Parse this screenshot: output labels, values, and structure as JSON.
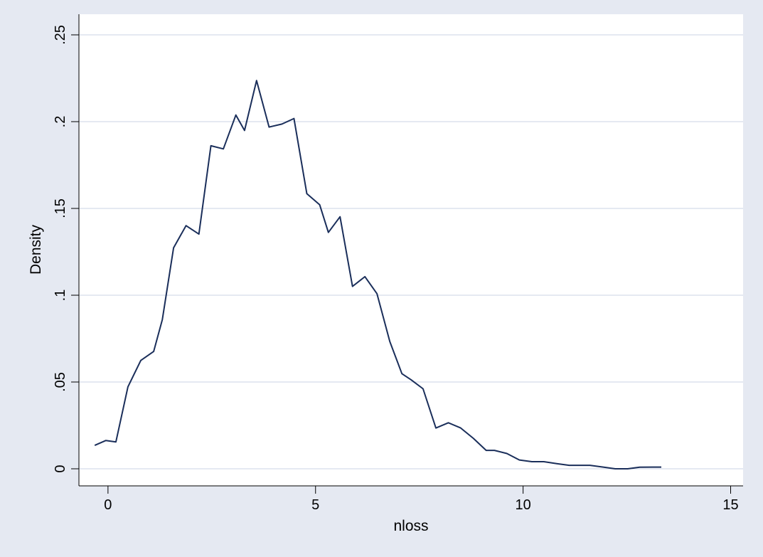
{
  "chart_data": {
    "type": "line",
    "title": "",
    "xlabel": "nloss",
    "ylabel": "Density",
    "xlim": [
      -0.7,
      15.3
    ],
    "ylim": [
      0,
      0.25
    ],
    "xticks": [
      0,
      5,
      10,
      15
    ],
    "xtick_labels": [
      "0",
      "5",
      "10",
      "15"
    ],
    "yticks": [
      0,
      0.05,
      0.1,
      0.15,
      0.2,
      0.25
    ],
    "ytick_labels": [
      "0",
      ".05",
      ".1",
      ".15",
      ".2",
      ".25"
    ],
    "grid": true,
    "legend": "none",
    "colors": {
      "background": "#e5e9f2",
      "plot_area": "#ffffff",
      "line": "#1a2e5a",
      "grid": "#e5e9f2"
    },
    "series": [
      {
        "x": [
          -0.32,
          -0.05,
          0.19,
          0.48,
          0.79,
          1.1,
          1.31,
          1.58,
          1.88,
          2.19,
          2.48,
          2.78,
          3.08,
          3.29,
          3.58,
          3.88,
          4.19,
          4.48,
          4.79,
          5.1,
          5.31,
          5.59,
          5.89,
          6.19,
          6.48,
          6.79,
          7.08,
          7.3,
          7.59,
          7.9,
          8.2,
          8.49,
          8.8,
          9.11,
          9.31,
          9.61,
          9.91,
          10.21,
          10.5,
          10.81,
          11.11,
          11.32,
          11.61,
          11.93,
          12.22,
          12.52,
          12.81,
          13.12,
          13.33
        ],
        "y": [
          0.0135,
          0.0163,
          0.0155,
          0.0472,
          0.0624,
          0.0676,
          0.086,
          0.1273,
          0.1401,
          0.1352,
          0.1861,
          0.1843,
          0.2038,
          0.1949,
          0.2237,
          0.1969,
          0.1986,
          0.2018,
          0.1585,
          0.1521,
          0.1362,
          0.1452,
          0.1051,
          0.1107,
          0.1009,
          0.0733,
          0.0548,
          0.0513,
          0.0461,
          0.0235,
          0.0265,
          0.0236,
          0.0176,
          0.0106,
          0.0106,
          0.0088,
          0.0051,
          0.0041,
          0.0041,
          0.003,
          0.002,
          0.002,
          0.002,
          0.001,
          0.0,
          0.0,
          0.0009,
          0.001,
          0.001
        ]
      }
    ]
  }
}
